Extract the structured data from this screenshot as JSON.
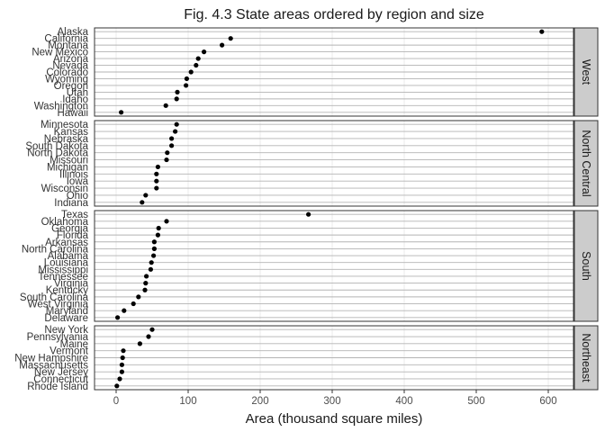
{
  "chart_data": {
    "type": "scatter",
    "title": "Fig. 4.3 State areas ordered by region and size",
    "xlabel": "Area (thousand square miles)",
    "ylabel": "",
    "xlim": [
      -30,
      635
    ],
    "xticks": [
      0,
      100,
      200,
      300,
      400,
      500,
      600
    ],
    "grid": true,
    "legend": "none",
    "colors": {
      "point": "#000000",
      "grid": "#b3b3b3",
      "strip": "#cccccc",
      "border": "#333333"
    },
    "facets": [
      {
        "name": "West",
        "states": [
          "Alaska",
          "California",
          "Montana",
          "New Mexico",
          "Arizona",
          "Nevada",
          "Colorado",
          "Wyoming",
          "Oregon",
          "Utah",
          "Idaho",
          "Washington",
          "Hawaii"
        ],
        "values": [
          591,
          159,
          147,
          122,
          114,
          111,
          104,
          98,
          97,
          85,
          84,
          69,
          7
        ]
      },
      {
        "name": "North Central",
        "states": [
          "Minnesota",
          "Kansas",
          "Nebraska",
          "South Dakota",
          "North Dakota",
          "Missouri",
          "Michigan",
          "Illinois",
          "Iowa",
          "Wisconsin",
          "Ohio",
          "Indiana"
        ],
        "values": [
          84,
          82,
          77,
          77,
          71,
          70,
          58,
          56,
          56,
          56,
          41,
          36
        ]
      },
      {
        "name": "South",
        "states": [
          "Texas",
          "Oklahoma",
          "Georgia",
          "Florida",
          "Arkansas",
          "North Carolina",
          "Alabama",
          "Louisiana",
          "Mississippi",
          "Tennessee",
          "Virginia",
          "Kentucky",
          "South Carolina",
          "West Virginia",
          "Maryland",
          "Delaware"
        ],
        "values": [
          267,
          70,
          59,
          58,
          53,
          53,
          52,
          49,
          48,
          42,
          41,
          40,
          31,
          24,
          11,
          2
        ]
      },
      {
        "name": "Northeast",
        "states": [
          "New York",
          "Pennsylvania",
          "Maine",
          "Vermont",
          "New Hampshire",
          "Massachusetts",
          "New Jersey",
          "Connecticut",
          "Rhode Island"
        ],
        "values": [
          50,
          45,
          33,
          10,
          9,
          8,
          8,
          5,
          1
        ]
      }
    ]
  }
}
